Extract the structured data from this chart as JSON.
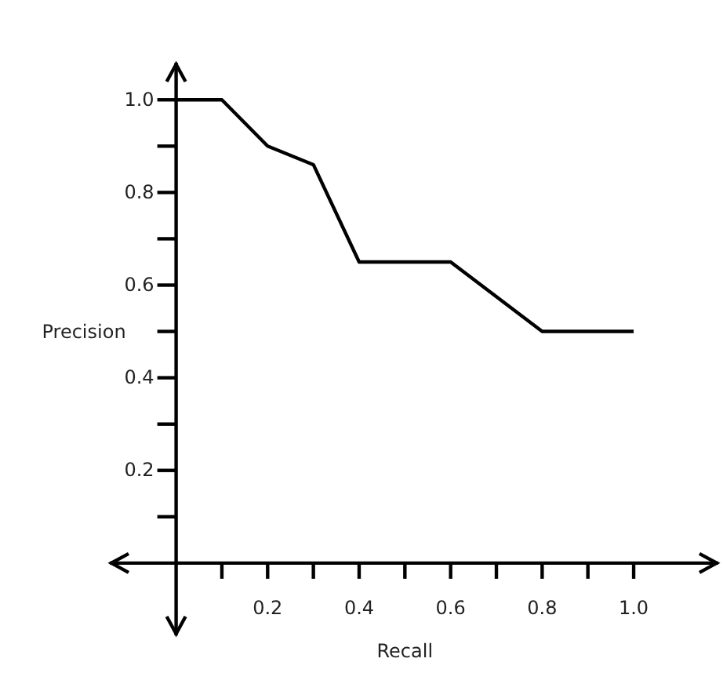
{
  "chart_data": {
    "type": "line",
    "xlabel": "Recall",
    "ylabel": "Precision",
    "x": [
      0,
      0.1,
      0.2,
      0.3,
      0.4,
      0.6,
      0.8,
      1.0
    ],
    "series": [
      {
        "color": "#000000",
        "values": [
          1.0,
          1.0,
          0.9,
          0.86,
          0.65,
          0.65,
          0.5,
          0.5
        ]
      }
    ],
    "xlim": [
      -0.145,
      1.185
    ],
    "ylim": [
      -0.156,
      1.08
    ],
    "xticks": [
      {
        "value": 0.1,
        "label": null
      },
      0.2,
      {
        "value": 0.3,
        "label": null
      },
      0.4,
      {
        "value": 0.5,
        "label": null
      },
      0.6,
      {
        "value": 0.7,
        "label": null
      },
      0.8,
      {
        "value": 0.9,
        "label": null
      },
      {
        "value": 1.0,
        "label": "1.0"
      }
    ],
    "yticks": [
      {
        "value": 0.1,
        "label": null
      },
      0.2,
      {
        "value": 0.3,
        "label": null
      },
      0.4,
      {
        "value": 0.5,
        "label": null
      },
      0.6,
      {
        "value": 0.7,
        "label": null
      },
      0.8,
      {
        "value": 0.9,
        "label": null
      },
      {
        "value": 1.0,
        "label": "1.0"
      }
    ],
    "grid": false,
    "marker": "none",
    "line_style": "solid"
  }
}
